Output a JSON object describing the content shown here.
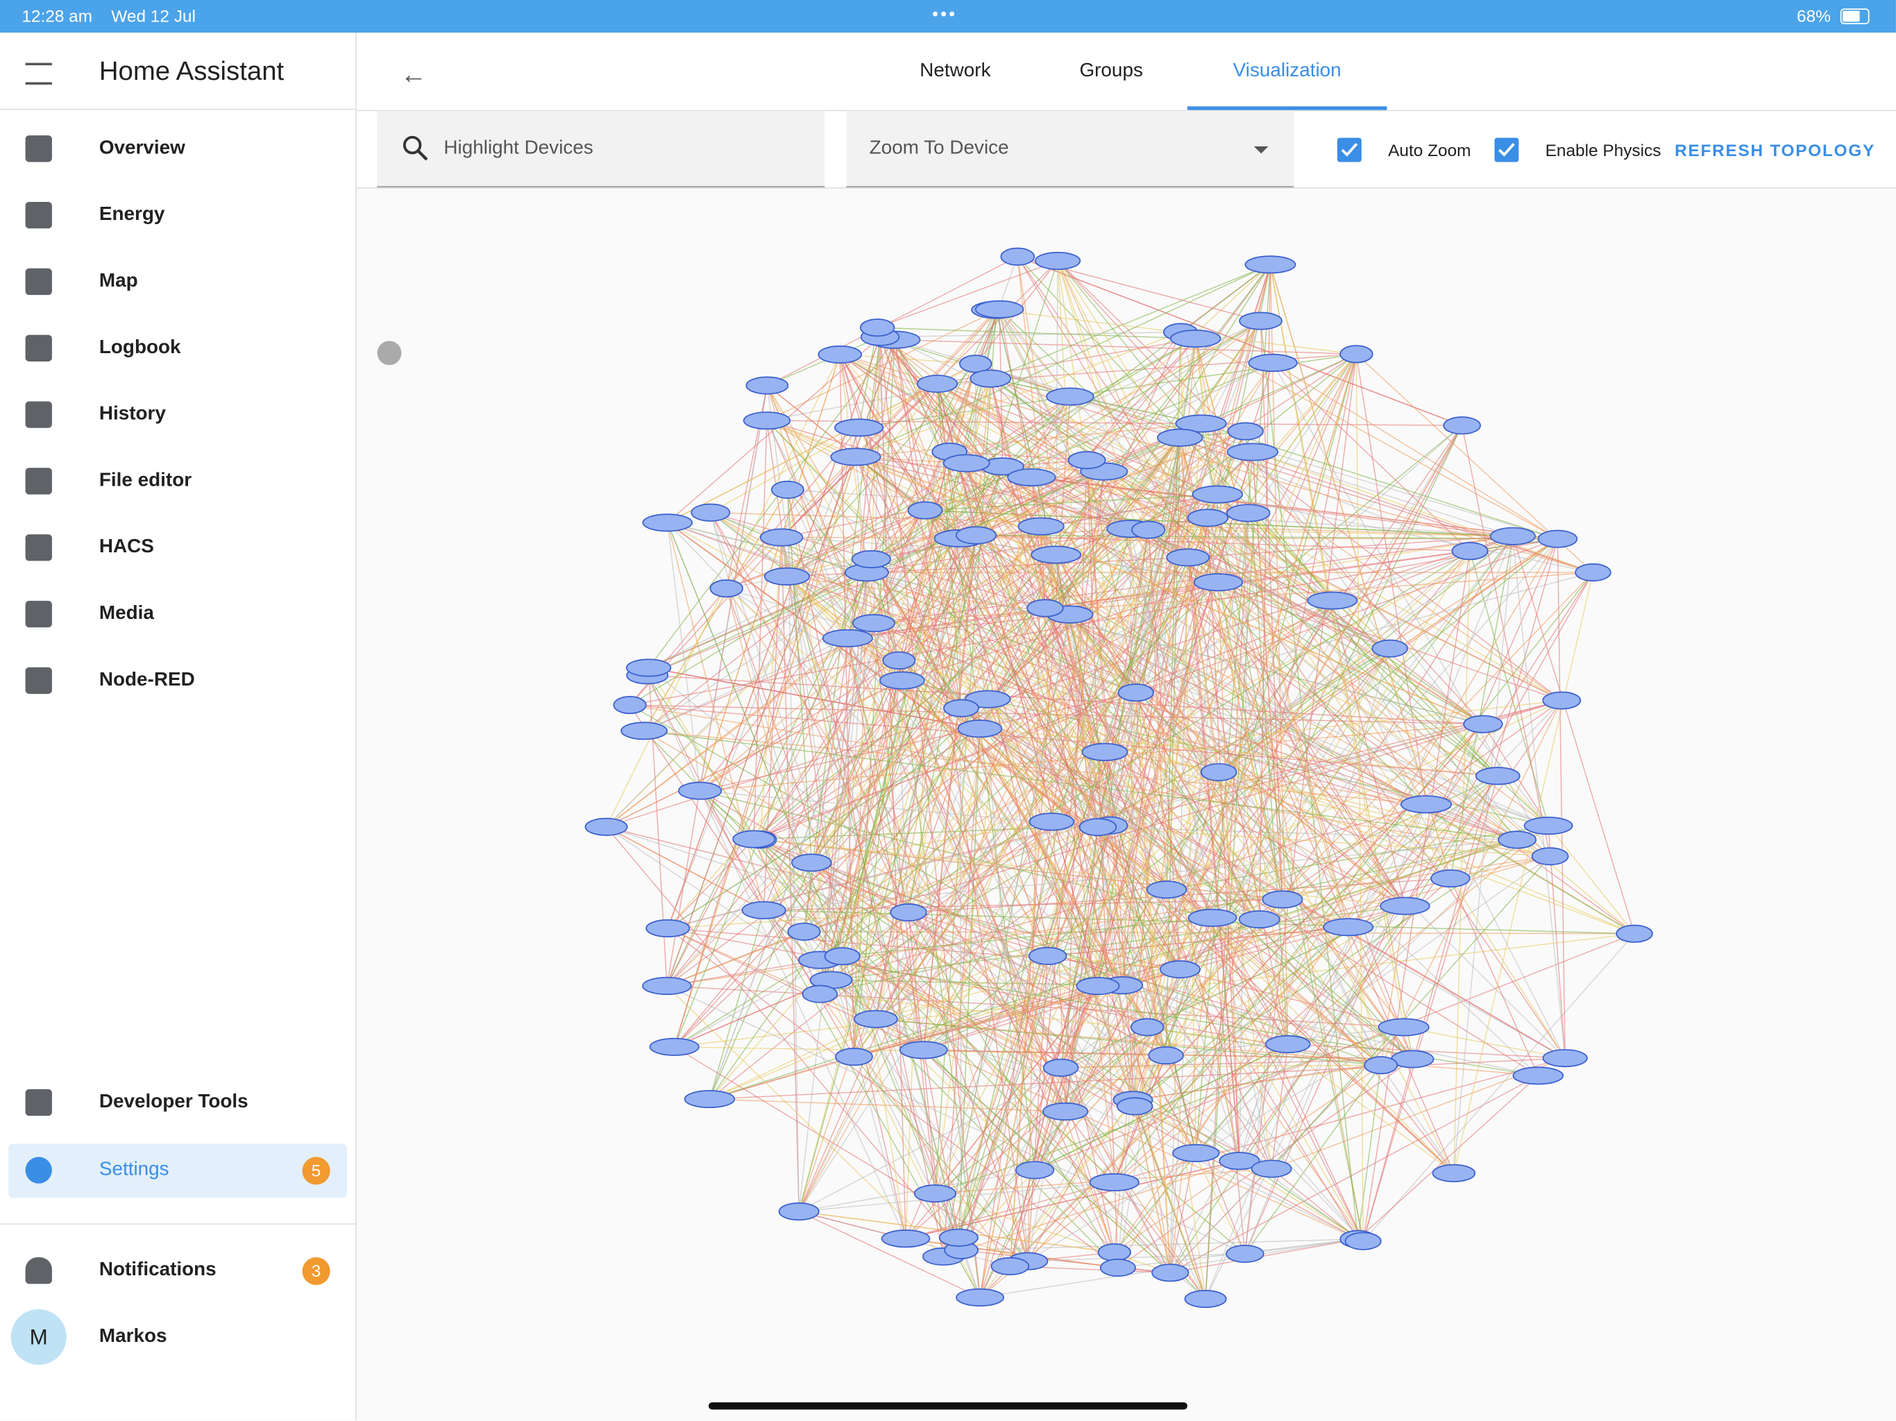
{
  "status_bar": {
    "time": "12:28 am",
    "date": "Wed 12 Jul",
    "battery": "68%"
  },
  "sidebar": {
    "title": "Home Assistant",
    "menu": [
      "Overview",
      "Energy",
      "Map",
      "Logbook",
      "History",
      "File editor",
      "HACS",
      "Media",
      "Node-RED"
    ],
    "bottom_menu": [
      {
        "label": "Developer Tools"
      },
      {
        "label": "Settings",
        "badge": 5
      }
    ],
    "notifications": {
      "label": "Notifications",
      "badge": 3
    },
    "user": {
      "initial": "M",
      "name": "Markos"
    }
  },
  "tabs": [
    "Network",
    "Groups",
    "Visualization"
  ],
  "toolbar": {
    "search_placeholder": "Highlight Devices",
    "zoom_select": "Zoom To Device",
    "auto_zoom": "Auto Zoom",
    "enable_physics": "Enable Physics",
    "refresh": "REFRESH TOPOLOGY"
  }
}
